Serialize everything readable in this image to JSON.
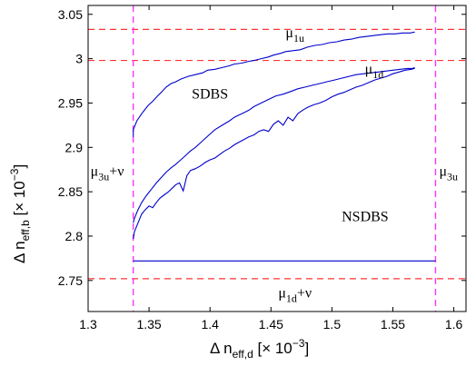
{
  "chart_data": {
    "type": "line",
    "xlabel": {
      "main": "Δ n",
      "sub": "eff,d",
      "unit": " [× 10",
      "exp": "−3",
      "close": "]"
    },
    "ylabel": {
      "main": "Δ n",
      "sub": "eff,b",
      "unit": " [× 10",
      "exp": "−3",
      "close": "]"
    },
    "xlim": [
      1.3,
      1.61
    ],
    "ylim": [
      2.715,
      3.06
    ],
    "xticks": [
      {
        "v": 1.3,
        "label": "1.3"
      },
      {
        "v": 1.35,
        "label": "1.35"
      },
      {
        "v": 1.4,
        "label": "1.4"
      },
      {
        "v": 1.45,
        "label": "1.45"
      },
      {
        "v": 1.5,
        "label": "1.5"
      },
      {
        "v": 1.55,
        "label": "1.55"
      },
      {
        "v": 1.6,
        "label": "1.6"
      }
    ],
    "yticks": [
      {
        "v": 2.75,
        "label": "2.75"
      },
      {
        "v": 2.8,
        "label": "2.8"
      },
      {
        "v": 2.85,
        "label": "2.85"
      },
      {
        "v": 2.9,
        "label": "2.9"
      },
      {
        "v": 2.95,
        "label": "2.95"
      },
      {
        "v": 3.0,
        "label": "3"
      },
      {
        "v": 3.05,
        "label": "3.05"
      }
    ],
    "grid": false,
    "hlines": [
      {
        "y": 3.033,
        "color": "#ff3333",
        "style": "dashed"
      },
      {
        "y": 2.998,
        "color": "#ff3333",
        "style": "dashed"
      },
      {
        "y": 2.752,
        "color": "#ff3333",
        "style": "dashed"
      }
    ],
    "vlines": [
      {
        "x": 1.337,
        "color": "#ff33ff",
        "style": "dashed"
      },
      {
        "x": 1.585,
        "color": "#ff33ff",
        "style": "dashed"
      }
    ],
    "series": [
      {
        "name": "μ1u",
        "color": "#0000cc",
        "x": [
          1.337,
          1.337,
          1.34,
          1.344,
          1.349,
          1.353,
          1.357,
          1.36,
          1.364,
          1.368,
          1.372,
          1.376,
          1.382,
          1.388,
          1.394,
          1.398,
          1.404,
          1.41,
          1.416,
          1.42,
          1.426,
          1.432,
          1.436,
          1.442,
          1.448,
          1.452,
          1.458,
          1.462,
          1.468,
          1.474,
          1.48,
          1.486,
          1.492,
          1.498,
          1.504,
          1.51,
          1.516,
          1.522,
          1.528,
          1.534,
          1.54,
          1.546,
          1.552,
          1.558,
          1.564,
          1.568
        ],
        "y": [
          2.912,
          2.92,
          2.93,
          2.938,
          2.947,
          2.952,
          2.958,
          2.962,
          2.968,
          2.972,
          2.974,
          2.977,
          2.98,
          2.982,
          2.984,
          2.987,
          2.988,
          2.99,
          2.992,
          2.994,
          2.995,
          2.997,
          2.998,
          3.0,
          3.002,
          3.004,
          3.006,
          3.008,
          3.009,
          3.01,
          3.013,
          3.015,
          3.016,
          3.018,
          3.019,
          3.021,
          3.022,
          3.024,
          3.025,
          3.026,
          3.027,
          3.028,
          3.028,
          3.029,
          3.029,
          3.03
        ]
      },
      {
        "name": "μ1d",
        "color": "#0000cc",
        "x": [
          1.337,
          1.338,
          1.341,
          1.344,
          1.348,
          1.352,
          1.356,
          1.36,
          1.364,
          1.368,
          1.372,
          1.376,
          1.38,
          1.384,
          1.388,
          1.392,
          1.396,
          1.4,
          1.404,
          1.41,
          1.416,
          1.42,
          1.426,
          1.432,
          1.436,
          1.442,
          1.448,
          1.454,
          1.46,
          1.466,
          1.472,
          1.478,
          1.484,
          1.49,
          1.496,
          1.502,
          1.508,
          1.514,
          1.52,
          1.526,
          1.532,
          1.538,
          1.544,
          1.55,
          1.556,
          1.562,
          1.566,
          1.568
        ],
        "y": [
          2.815,
          2.82,
          2.83,
          2.838,
          2.846,
          2.853,
          2.86,
          2.866,
          2.872,
          2.877,
          2.881,
          2.886,
          2.891,
          2.896,
          2.9,
          2.905,
          2.91,
          2.915,
          2.92,
          2.925,
          2.93,
          2.934,
          2.938,
          2.942,
          2.946,
          2.95,
          2.954,
          2.958,
          2.96,
          2.963,
          2.966,
          2.968,
          2.97,
          2.972,
          2.974,
          2.976,
          2.978,
          2.98,
          2.982,
          2.983,
          2.984,
          2.985,
          2.986,
          2.987,
          2.988,
          2.989,
          2.989,
          2.99
        ]
      },
      {
        "name": "",
        "color": "#0000cc",
        "x": [
          1.337,
          1.338,
          1.341,
          1.344,
          1.347,
          1.35,
          1.353,
          1.356,
          1.359,
          1.362,
          1.366,
          1.369,
          1.372,
          1.375,
          1.378,
          1.381,
          1.384,
          1.388,
          1.392,
          1.396,
          1.4,
          1.404,
          1.408,
          1.412,
          1.416,
          1.42,
          1.424,
          1.428,
          1.432,
          1.436,
          1.44,
          1.444,
          1.448,
          1.452,
          1.456,
          1.46,
          1.464,
          1.468,
          1.472,
          1.476,
          1.48,
          1.485,
          1.49,
          1.495,
          1.5,
          1.505,
          1.51,
          1.515,
          1.52,
          1.525,
          1.53,
          1.535,
          1.54,
          1.545,
          1.55,
          1.555,
          1.56,
          1.565,
          1.568
        ],
        "y": [
          2.797,
          2.805,
          2.815,
          2.825,
          2.83,
          2.834,
          2.832,
          2.838,
          2.843,
          2.846,
          2.85,
          2.854,
          2.858,
          2.86,
          2.851,
          2.868,
          2.874,
          2.876,
          2.879,
          2.883,
          2.886,
          2.888,
          2.892,
          2.896,
          2.899,
          2.903,
          2.906,
          2.909,
          2.912,
          2.914,
          2.918,
          2.92,
          2.918,
          2.926,
          2.93,
          2.925,
          2.934,
          2.93,
          2.938,
          2.942,
          2.945,
          2.948,
          2.95,
          2.953,
          2.957,
          2.96,
          2.962,
          2.965,
          2.968,
          2.97,
          2.973,
          2.976,
          2.978,
          2.98,
          2.983,
          2.985,
          2.987,
          2.988,
          2.989
        ]
      },
      {
        "name": "",
        "color": "#0000cc",
        "x": [
          1.337,
          1.585
        ],
        "y": [
          2.772,
          2.772
        ]
      }
    ],
    "annotations": [
      {
        "main": "μ",
        "sub": "1u",
        "suffix": "",
        "x": 1.462,
        "y": 3.024
      },
      {
        "main": "μ",
        "sub": "1d",
        "suffix": "",
        "x": 1.527,
        "y": 2.983
      },
      {
        "main": "SDBS",
        "sub": "",
        "suffix": "",
        "x": 1.385,
        "y": 2.955
      },
      {
        "main": "NSDBS",
        "sub": "",
        "suffix": "",
        "x": 1.508,
        "y": 2.817
      },
      {
        "main": "μ",
        "sub": "3u",
        "suffix": "+ν",
        "x": 1.302,
        "y": 2.868
      },
      {
        "main": "μ",
        "sub": "3u",
        "suffix": "",
        "x": 1.588,
        "y": 2.868
      },
      {
        "main": "μ",
        "sub": "1d",
        "suffix": "+ν",
        "x": 1.456,
        "y": 2.731
      }
    ]
  }
}
